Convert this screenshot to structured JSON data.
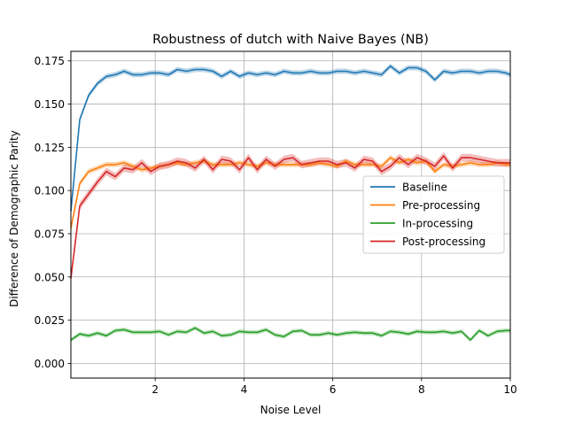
{
  "chart_data": {
    "type": "line",
    "title": "Robustness of dutch with Naive Bayes (NB)",
    "xlabel": "Noise Level",
    "ylabel": "Difference of Demographic Parity",
    "xlim": [
      0.1,
      10
    ],
    "ylim": [
      -0.0085,
      0.1805
    ],
    "xticks": [
      2,
      4,
      6,
      8,
      10
    ],
    "yticks": [
      0.0,
      0.025,
      0.05,
      0.075,
      0.1,
      0.125,
      0.15,
      0.175
    ],
    "xtick_labels": [
      "2",
      "4",
      "6",
      "8",
      "10"
    ],
    "ytick_labels": [
      "0.000",
      "0.025",
      "0.050",
      "0.075",
      "0.100",
      "0.125",
      "0.150",
      "0.175"
    ],
    "grid": true,
    "legend_position": "center-right",
    "x": [
      0.1,
      0.3,
      0.5,
      0.7,
      0.9,
      1.1,
      1.3,
      1.5,
      1.7,
      1.9,
      2.1,
      2.3,
      2.5,
      2.7,
      2.9,
      3.1,
      3.3,
      3.5,
      3.7,
      3.9,
      4.1,
      4.3,
      4.5,
      4.7,
      4.9,
      5.1,
      5.3,
      5.5,
      5.7,
      5.9,
      6.1,
      6.3,
      6.5,
      6.7,
      6.9,
      7.1,
      7.3,
      7.5,
      7.7,
      7.9,
      8.1,
      8.3,
      8.5,
      8.7,
      8.9,
      9.1,
      9.3,
      9.5,
      9.7,
      9.9,
      10.0
    ],
    "series": [
      {
        "name": "Baseline",
        "color": "#1f77b4",
        "band_color": "#1f77b4",
        "values": [
          0.088,
          0.141,
          0.155,
          0.162,
          0.166,
          0.167,
          0.169,
          0.167,
          0.167,
          0.168,
          0.168,
          0.167,
          0.17,
          0.169,
          0.17,
          0.17,
          0.169,
          0.166,
          0.169,
          0.166,
          0.168,
          0.167,
          0.168,
          0.167,
          0.169,
          0.168,
          0.168,
          0.169,
          0.168,
          0.168,
          0.169,
          0.169,
          0.168,
          0.169,
          0.168,
          0.167,
          0.172,
          0.168,
          0.171,
          0.171,
          0.169,
          0.164,
          0.169,
          0.168,
          0.169,
          0.169,
          0.168,
          0.169,
          0.169,
          0.168,
          0.167
        ],
        "band": 0.0015
      },
      {
        "name": "Pre-processing",
        "color": "#ff7f0e",
        "band_color": "#ff7f0e",
        "values": [
          0.078,
          0.104,
          0.111,
          0.113,
          0.115,
          0.115,
          0.116,
          0.114,
          0.112,
          0.113,
          0.114,
          0.115,
          0.116,
          0.115,
          0.116,
          0.117,
          0.115,
          0.115,
          0.115,
          0.116,
          0.115,
          0.114,
          0.116,
          0.115,
          0.115,
          0.115,
          0.115,
          0.115,
          0.116,
          0.115,
          0.114,
          0.117,
          0.115,
          0.115,
          0.115,
          0.114,
          0.119,
          0.116,
          0.118,
          0.116,
          0.117,
          0.111,
          0.115,
          0.114,
          0.115,
          0.116,
          0.115,
          0.115,
          0.116,
          0.115,
          0.115
        ],
        "band": 0.0015
      },
      {
        "name": "In-processing",
        "color": "#2ca02c",
        "band_color": "#2ca02c",
        "values": [
          0.0135,
          0.017,
          0.016,
          0.0175,
          0.016,
          0.019,
          0.0195,
          0.018,
          0.018,
          0.018,
          0.0185,
          0.0165,
          0.0185,
          0.018,
          0.0205,
          0.0175,
          0.0185,
          0.016,
          0.0165,
          0.0185,
          0.018,
          0.018,
          0.0195,
          0.0165,
          0.0155,
          0.0185,
          0.019,
          0.0165,
          0.0165,
          0.0175,
          0.0165,
          0.0175,
          0.018,
          0.0175,
          0.0175,
          0.016,
          0.0185,
          0.018,
          0.017,
          0.0185,
          0.018,
          0.018,
          0.0185,
          0.0175,
          0.0185,
          0.0135,
          0.019,
          0.016,
          0.0185,
          0.019,
          0.019
        ],
        "band": 0.0012
      },
      {
        "name": "Post-processing",
        "color": "#d62728",
        "band_color": "#d62728",
        "values": [
          0.049,
          0.091,
          0.098,
          0.105,
          0.111,
          0.108,
          0.113,
          0.112,
          0.116,
          0.111,
          0.114,
          0.115,
          0.117,
          0.116,
          0.113,
          0.118,
          0.112,
          0.118,
          0.117,
          0.112,
          0.119,
          0.112,
          0.118,
          0.114,
          0.118,
          0.119,
          0.115,
          0.116,
          0.117,
          0.117,
          0.115,
          0.116,
          0.113,
          0.118,
          0.117,
          0.111,
          0.114,
          0.119,
          0.115,
          0.119,
          0.117,
          0.114,
          0.12,
          0.113,
          0.119,
          0.119,
          0.118,
          0.117,
          0.116,
          0.116,
          0.116
        ],
        "band": 0.0022
      }
    ]
  }
}
